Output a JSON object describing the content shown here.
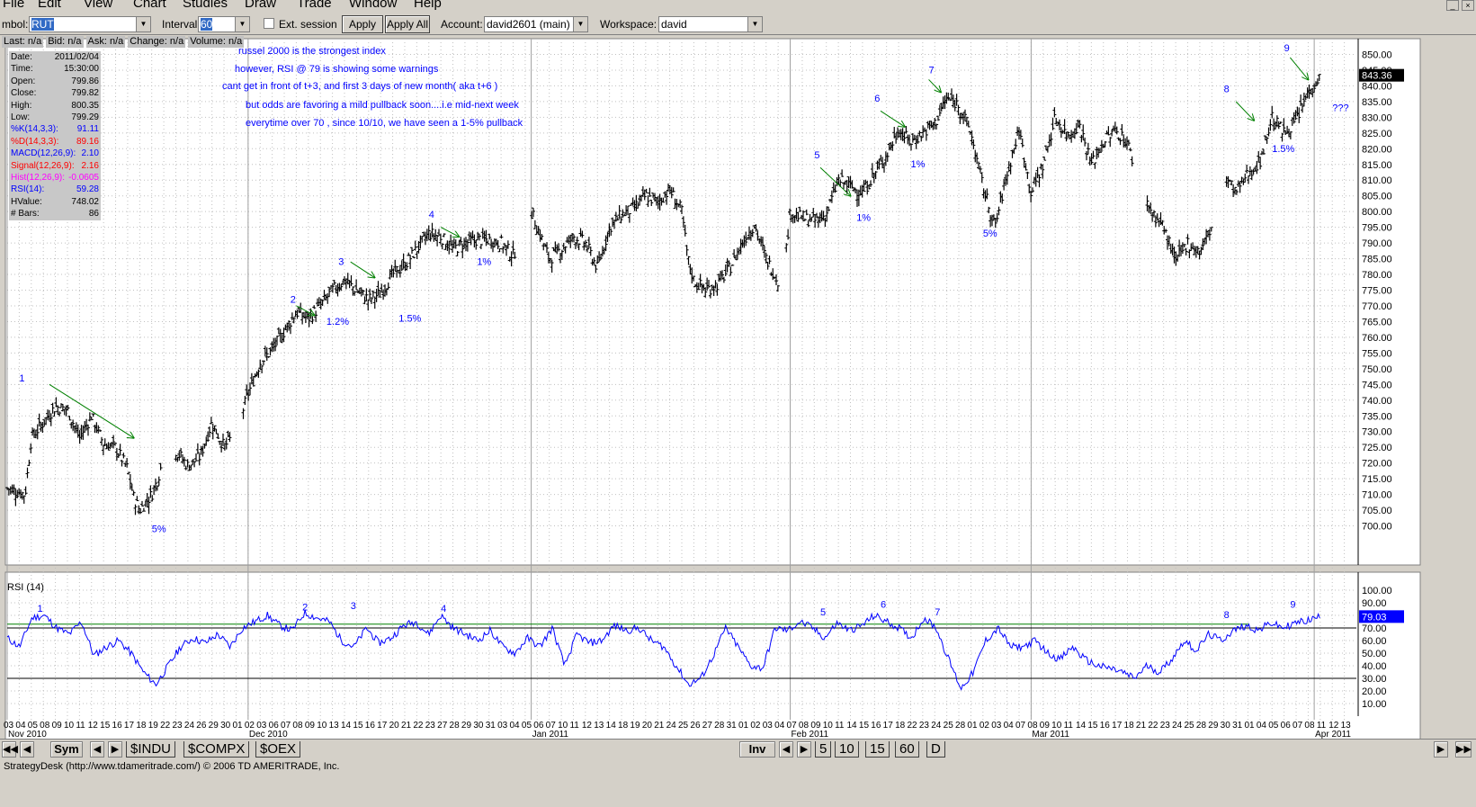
{
  "menu": [
    "File",
    "Edit",
    "View",
    "Chart",
    "Studies",
    "Draw",
    "Trade",
    "Window",
    "Help"
  ],
  "toolbar": {
    "symbol_label": "mbol:",
    "symbol_value": "RUT",
    "interval_label": "Interval:",
    "interval_value": "60",
    "ext_session_label": "Ext. session",
    "apply_label": "Apply",
    "apply_all_label": "Apply All",
    "account_label": "Account:",
    "account_value": "david2601 (main)",
    "workspace_label": "Workspace:",
    "workspace_value": "david"
  },
  "quote_bar": [
    "Last: n/a",
    "Bid: n/a",
    "Ask: n/a",
    "Change: n/a",
    "Volume: n/a"
  ],
  "data_panel": [
    {
      "label": "Date:",
      "value": "2011/02/04",
      "color": "#000000"
    },
    {
      "label": "Time:",
      "value": "15:30:00",
      "color": "#000000"
    },
    {
      "label": "Open:",
      "value": "799.86",
      "color": "#000000"
    },
    {
      "label": "Close:",
      "value": "799.82",
      "color": "#000000"
    },
    {
      "label": "High:",
      "value": "800.35",
      "color": "#000000"
    },
    {
      "label": "Low:",
      "value": "799.29",
      "color": "#000000"
    },
    {
      "label": "%K(14,3,3):",
      "value": "91.11",
      "color": "#0000ff"
    },
    {
      "label": "%D(14,3,3):",
      "value": "89.16",
      "color": "#ff0000"
    },
    {
      "label": "MACD(12,26,9):",
      "value": "2.10",
      "color": "#0000ff"
    },
    {
      "label": "Signal(12,26,9):",
      "value": "2.16",
      "color": "#ff0000"
    },
    {
      "label": "Hist(12,26,9):",
      "value": "-0.0605",
      "color": "#ff00ff"
    },
    {
      "label": "RSI(14):",
      "value": "59.28",
      "color": "#0000ff"
    },
    {
      "label": "HValue:",
      "value": "748.02",
      "color": "#000000"
    },
    {
      "label": "# Bars:",
      "value": "86",
      "color": "#000000"
    }
  ],
  "notes": [
    "russel 2000  is  the strongest index",
    "however, RSI @ 79 is showing some warnings",
    "cant get in front of t+3, and first 3 days of new month(  aka  t+6  )",
    "but odds are favoring a mild pullback soon....i.e mid-next week",
    "everytime  over 70  , since 10/10, we have seen a 1-5% pullback"
  ],
  "rsi_title": "RSI (14)",
  "bottom_bar": {
    "sym_label": "Sym",
    "symbol_tabs": [
      "$INDU",
      "$COMPX",
      "$OEX"
    ],
    "inv_label": "Inv",
    "interval_tabs": [
      "5",
      "10",
      "15",
      "60",
      "D"
    ]
  },
  "status_text": "StrategyDesk (http://www.tdameritrade.com/) © 2006 TD AMERITRADE, Inc.",
  "chart_data": [
    {
      "type": "ohlc",
      "symbol": "RUT",
      "interval": "60 min",
      "ylim": [
        695,
        855
      ],
      "y_ticks": [
        700,
        705,
        710,
        715,
        720,
        725,
        730,
        735,
        740,
        745,
        750,
        755,
        760,
        765,
        770,
        775,
        780,
        785,
        790,
        795,
        800,
        805,
        810,
        815,
        820,
        825,
        830,
        835,
        840,
        845,
        850
      ],
      "last_price_label": "843.36",
      "last_price": 843.36,
      "month_labels": [
        {
          "label": "Nov 2010",
          "pos": 0
        },
        {
          "label": "Dec 2010",
          "pos": 20
        },
        {
          "label": "Jan 2011",
          "pos": 43.5
        },
        {
          "label": "Feb 2011",
          "pos": 65
        },
        {
          "label": "Mar 2011",
          "pos": 85
        },
        {
          "label": "Apr 2011",
          "pos": 108.5
        }
      ],
      "day_labels": [
        "03",
        "04",
        "05",
        "08",
        "09",
        "10",
        "11",
        "12",
        "15",
        "16",
        "17",
        "18",
        "19",
        "22",
        "23",
        "24",
        "26",
        "29",
        "30",
        "01",
        "02",
        "03",
        "06",
        "07",
        "08",
        "09",
        "10",
        "13",
        "14",
        "15",
        "16",
        "17",
        "20",
        "21",
        "22",
        "23",
        "27",
        "28",
        "29",
        "30",
        "31",
        "03",
        "04",
        "05",
        "06",
        "07",
        "10",
        "11",
        "12",
        "13",
        "14",
        "18",
        "19",
        "20",
        "21",
        "24",
        "25",
        "26",
        "27",
        "28",
        "31",
        "01",
        "02",
        "03",
        "04",
        "07",
        "08",
        "09",
        "10",
        "11",
        "14",
        "15",
        "16",
        "17",
        "18",
        "22",
        "23",
        "24",
        "25",
        "28",
        "01",
        "02",
        "03",
        "04",
        "07",
        "08",
        "09",
        "10",
        "11",
        "14",
        "15",
        "16",
        "17",
        "18",
        "21",
        "22",
        "23",
        "24",
        "25",
        "28",
        "29",
        "30",
        "31",
        "01",
        "04",
        "05",
        "06",
        "07",
        "08",
        "11",
        "12",
        "13"
      ],
      "price_path": [
        [
          0,
          712
        ],
        [
          1.5,
          710
        ],
        [
          2,
          728
        ],
        [
          4,
          738
        ],
        [
          5,
          737
        ],
        [
          6,
          728
        ],
        [
          7,
          735
        ],
        [
          8,
          726
        ],
        [
          9,
          725
        ],
        [
          10,
          718
        ],
        [
          10.5,
          709
        ],
        [
          11,
          705
        ],
        [
          12,
          710
        ],
        [
          12.5,
          715
        ],
        [
          13,
          722
        ],
        [
          14,
          724
        ],
        [
          15,
          719
        ],
        [
          16,
          722
        ],
        [
          17,
          733
        ],
        [
          18,
          725
        ],
        [
          19,
          730
        ],
        [
          20,
          742
        ],
        [
          21,
          752
        ],
        [
          22,
          756
        ],
        [
          23,
          762
        ],
        [
          24,
          768
        ],
        [
          25,
          766
        ],
        [
          26,
          770
        ],
        [
          27,
          775
        ],
        [
          28,
          778
        ],
        [
          29,
          775
        ],
        [
          30,
          772
        ],
        [
          31,
          774
        ],
        [
          32,
          780
        ],
        [
          33,
          783
        ],
        [
          34,
          788
        ],
        [
          35,
          793
        ],
        [
          36,
          792
        ],
        [
          37,
          788
        ],
        [
          38,
          790
        ],
        [
          39,
          791
        ],
        [
          40,
          791
        ],
        [
          41,
          790
        ],
        [
          42,
          786
        ],
        [
          43.5,
          800
        ],
        [
          44,
          795
        ],
        [
          45,
          785
        ],
        [
          46,
          788
        ],
        [
          47,
          792
        ],
        [
          48,
          790
        ],
        [
          49,
          782
        ],
        [
          50,
          795
        ],
        [
          51,
          799
        ],
        [
          52,
          801
        ],
        [
          53,
          805
        ],
        [
          54,
          803
        ],
        [
          55,
          807
        ],
        [
          56,
          800
        ],
        [
          56.5,
          785
        ],
        [
          57,
          778
        ],
        [
          58,
          775
        ],
        [
          59,
          777
        ],
        [
          60,
          782
        ],
        [
          61,
          790
        ],
        [
          62,
          796
        ],
        [
          63,
          785
        ],
        [
          64,
          778
        ],
        [
          64.5,
          782
        ],
        [
          65,
          800
        ],
        [
          66,
          798
        ],
        [
          67,
          797
        ],
        [
          68,
          799
        ],
        [
          69,
          810
        ],
        [
          70,
          808
        ],
        [
          71,
          806
        ],
        [
          72,
          812
        ],
        [
          73,
          818
        ],
        [
          74,
          826
        ],
        [
          75,
          822
        ],
        [
          76,
          825
        ],
        [
          77,
          828
        ],
        [
          78,
          836
        ],
        [
          79,
          834
        ],
        [
          80,
          825
        ],
        [
          81,
          808
        ],
        [
          82,
          795
        ],
        [
          83,
          812
        ],
        [
          84,
          826
        ],
        [
          85,
          806
        ],
        [
          86,
          815
        ],
        [
          87,
          830
        ],
        [
          88,
          824
        ],
        [
          89,
          828
        ],
        [
          90,
          815
        ],
        [
          91,
          822
        ],
        [
          92,
          826
        ],
        [
          93,
          822
        ],
        [
          94,
          808
        ],
        [
          95,
          800
        ],
        [
          96,
          795
        ],
        [
          97,
          784
        ],
        [
          98,
          790
        ],
        [
          99,
          787
        ],
        [
          100,
          795
        ],
        [
          101,
          812
        ],
        [
          102,
          806
        ],
        [
          103,
          812
        ],
        [
          104,
          816
        ],
        [
          105,
          830
        ],
        [
          106,
          825
        ],
        [
          107,
          829
        ],
        [
          108,
          838
        ],
        [
          109,
          843
        ]
      ],
      "annotations": [
        {
          "text": "1",
          "x": 1,
          "y": 746,
          "color": "#0000ff"
        },
        {
          "text": "5%",
          "x": 12,
          "y": 698,
          "color": "#0000ff"
        },
        {
          "text": "2",
          "x": 23.5,
          "y": 771,
          "color": "#0000ff"
        },
        {
          "text": "1.2%",
          "x": 26.5,
          "y": 764,
          "color": "#0000ff"
        },
        {
          "text": "3",
          "x": 27.5,
          "y": 783,
          "color": "#0000ff"
        },
        {
          "text": "1.5%",
          "x": 32.5,
          "y": 765,
          "color": "#0000ff"
        },
        {
          "text": "4",
          "x": 35,
          "y": 798,
          "color": "#0000ff"
        },
        {
          "text": "1%",
          "x": 39,
          "y": 783,
          "color": "#0000ff"
        },
        {
          "text": "5",
          "x": 67,
          "y": 817,
          "color": "#0000ff"
        },
        {
          "text": "1%",
          "x": 70.5,
          "y": 797,
          "color": "#0000ff"
        },
        {
          "text": "6",
          "x": 72,
          "y": 835,
          "color": "#0000ff"
        },
        {
          "text": "1%",
          "x": 75,
          "y": 814,
          "color": "#0000ff"
        },
        {
          "text": "7",
          "x": 76.5,
          "y": 844,
          "color": "#0000ff"
        },
        {
          "text": "5%",
          "x": 81,
          "y": 792,
          "color": "#0000ff"
        },
        {
          "text": "8",
          "x": 101,
          "y": 838,
          "color": "#0000ff"
        },
        {
          "text": "1.5%",
          "x": 105,
          "y": 819,
          "color": "#0000ff"
        },
        {
          "text": "9",
          "x": 106,
          "y": 851,
          "color": "#0000ff"
        },
        {
          "text": "???",
          "x": 110,
          "y": 832,
          "color": "#0000ff"
        }
      ],
      "arrows": [
        {
          "from": [
            3.5,
            745
          ],
          "to": [
            10.5,
            728
          ]
        },
        {
          "from": [
            24,
            770
          ],
          "to": [
            25.5,
            767
          ]
        },
        {
          "from": [
            28.5,
            784
          ],
          "to": [
            30.5,
            779
          ]
        },
        {
          "from": [
            36,
            795
          ],
          "to": [
            37.5,
            792
          ]
        },
        {
          "from": [
            67.5,
            814
          ],
          "to": [
            70,
            805
          ]
        },
        {
          "from": [
            72.5,
            832
          ],
          "to": [
            74.5,
            827
          ]
        },
        {
          "from": [
            76.5,
            842
          ],
          "to": [
            77.5,
            838
          ]
        },
        {
          "from": [
            102,
            835
          ],
          "to": [
            103.5,
            829
          ]
        },
        {
          "from": [
            106.5,
            849
          ],
          "to": [
            108,
            842
          ]
        }
      ]
    },
    {
      "type": "line",
      "title": "RSI (14)",
      "ylim": [
        0,
        100
      ],
      "y_ticks": [
        10,
        20,
        30,
        40,
        50,
        60,
        70,
        80,
        90,
        100
      ],
      "reference_lines": [
        70,
        30
      ],
      "overbought_line": 73,
      "last_value_label": "79.03",
      "last_value": 79.03,
      "series": [
        {
          "values": [
            62,
            55,
            78,
            80,
            70,
            65,
            75,
            48,
            55,
            60,
            50,
            35,
            25,
            40,
            55,
            62,
            58,
            65,
            55,
            70,
            75,
            80,
            72,
            68,
            82,
            78,
            75,
            60,
            55,
            70,
            58,
            62,
            72,
            75,
            65,
            80,
            70,
            65,
            60,
            68,
            55,
            50,
            62,
            55,
            70,
            40,
            65,
            58,
            60,
            72,
            68,
            70,
            60,
            55,
            40,
            25,
            30,
            48,
            70,
            55,
            40,
            38,
            70,
            68,
            75,
            70,
            62,
            74,
            68,
            72,
            80,
            75,
            70,
            62,
            78,
            70,
            45,
            22,
            35,
            60,
            70,
            55,
            55,
            60,
            50,
            45,
            55,
            45,
            40,
            38,
            35,
            30,
            40,
            35,
            45,
            60,
            52,
            65,
            60,
            68,
            72,
            68,
            74,
            70,
            74,
            76,
            79
          ]
        }
      ],
      "annotations": [
        {
          "text": "1",
          "x": 2.5,
          "y": 83
        },
        {
          "text": "2",
          "x": 24.5,
          "y": 84
        },
        {
          "text": "3",
          "x": 28.5,
          "y": 85
        },
        {
          "text": "4",
          "x": 36,
          "y": 83
        },
        {
          "text": "5",
          "x": 67.5,
          "y": 80
        },
        {
          "text": "6",
          "x": 72.5,
          "y": 86
        },
        {
          "text": "7",
          "x": 77,
          "y": 80
        },
        {
          "text": "8",
          "x": 101,
          "y": 78
        },
        {
          "text": "9",
          "x": 106.5,
          "y": 86
        }
      ]
    }
  ],
  "colors": {
    "bars": "#000000",
    "rsi_line": "#0000ff",
    "overbought": "#008000",
    "arrow": "#008000",
    "note_text": "#0000ff",
    "label_highlight": "#0000ff",
    "grid": "#c0c0c0"
  },
  "icons": [
    "minimize-icon",
    "close-icon",
    "dropdown-arrow-icon",
    "first-icon",
    "prev-icon",
    "next-icon",
    "last-icon"
  ]
}
